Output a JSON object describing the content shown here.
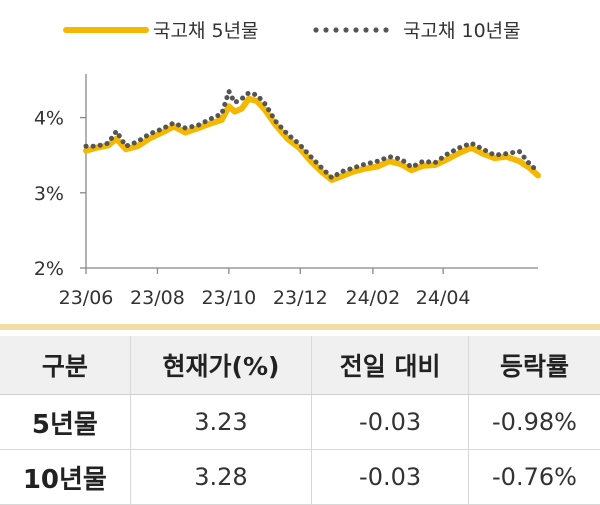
{
  "chart_data": {
    "type": "line",
    "legend": {
      "placement": "top"
    },
    "x_ticks": [
      "23/06",
      "23/08",
      "23/10",
      "23/12",
      "24/02",
      "24/04"
    ],
    "y_ticks": [
      "2%",
      "3%",
      "4%"
    ],
    "ylim": [
      2.0,
      4.5
    ],
    "grid": false,
    "x_range": [
      "2023-06-01",
      "2024-06-21"
    ],
    "series": [
      {
        "name": "국고채 5년물",
        "color": "#f5b800",
        "style": "solid",
        "points": [
          [
            "2023-06-01",
            3.56
          ],
          [
            "2023-06-10",
            3.6
          ],
          [
            "2023-06-20",
            3.63
          ],
          [
            "2023-06-27",
            3.72
          ],
          [
            "2023-07-05",
            3.58
          ],
          [
            "2023-07-15",
            3.62
          ],
          [
            "2023-07-25",
            3.72
          ],
          [
            "2023-08-05",
            3.8
          ],
          [
            "2023-08-15",
            3.88
          ],
          [
            "2023-08-25",
            3.8
          ],
          [
            "2023-09-05",
            3.86
          ],
          [
            "2023-09-15",
            3.92
          ],
          [
            "2023-09-25",
            3.97
          ],
          [
            "2023-10-01",
            4.15
          ],
          [
            "2023-10-06",
            4.08
          ],
          [
            "2023-10-12",
            4.12
          ],
          [
            "2023-10-18",
            4.25
          ],
          [
            "2023-10-25",
            4.22
          ],
          [
            "2023-11-01",
            4.1
          ],
          [
            "2023-11-10",
            3.9
          ],
          [
            "2023-11-20",
            3.72
          ],
          [
            "2023-11-30",
            3.6
          ],
          [
            "2023-12-10",
            3.42
          ],
          [
            "2023-12-20",
            3.27
          ],
          [
            "2023-12-28",
            3.17
          ],
          [
            "2024-01-05",
            3.22
          ],
          [
            "2024-01-15",
            3.28
          ],
          [
            "2024-01-25",
            3.32
          ],
          [
            "2024-02-05",
            3.35
          ],
          [
            "2024-02-15",
            3.42
          ],
          [
            "2024-02-25",
            3.38
          ],
          [
            "2024-03-05",
            3.3
          ],
          [
            "2024-03-15",
            3.36
          ],
          [
            "2024-03-25",
            3.37
          ],
          [
            "2024-04-05",
            3.45
          ],
          [
            "2024-04-15",
            3.53
          ],
          [
            "2024-04-25",
            3.6
          ],
          [
            "2024-05-05",
            3.52
          ],
          [
            "2024-05-15",
            3.46
          ],
          [
            "2024-05-25",
            3.48
          ],
          [
            "2024-06-05",
            3.42
          ],
          [
            "2024-06-14",
            3.33
          ],
          [
            "2024-06-21",
            3.23
          ]
        ]
      },
      {
        "name": "국고채 10년물",
        "color": "#555555",
        "style": "dotted",
        "points": [
          [
            "2023-06-01",
            3.62
          ],
          [
            "2023-06-10",
            3.62
          ],
          [
            "2023-06-20",
            3.66
          ],
          [
            "2023-06-27",
            3.82
          ],
          [
            "2023-07-05",
            3.62
          ],
          [
            "2023-07-15",
            3.68
          ],
          [
            "2023-07-25",
            3.78
          ],
          [
            "2023-08-05",
            3.85
          ],
          [
            "2023-08-15",
            3.93
          ],
          [
            "2023-08-25",
            3.86
          ],
          [
            "2023-09-05",
            3.9
          ],
          [
            "2023-09-15",
            3.98
          ],
          [
            "2023-09-25",
            4.05
          ],
          [
            "2023-10-01",
            4.35
          ],
          [
            "2023-10-06",
            4.2
          ],
          [
            "2023-10-12",
            4.25
          ],
          [
            "2023-10-18",
            4.33
          ],
          [
            "2023-10-25",
            4.3
          ],
          [
            "2023-11-01",
            4.18
          ],
          [
            "2023-11-10",
            3.95
          ],
          [
            "2023-11-20",
            3.78
          ],
          [
            "2023-11-30",
            3.65
          ],
          [
            "2023-12-10",
            3.48
          ],
          [
            "2023-12-20",
            3.32
          ],
          [
            "2023-12-28",
            3.2
          ],
          [
            "2024-01-05",
            3.28
          ],
          [
            "2024-01-15",
            3.33
          ],
          [
            "2024-01-25",
            3.38
          ],
          [
            "2024-02-05",
            3.42
          ],
          [
            "2024-02-15",
            3.48
          ],
          [
            "2024-02-25",
            3.45
          ],
          [
            "2024-03-05",
            3.34
          ],
          [
            "2024-03-15",
            3.42
          ],
          [
            "2024-03-25",
            3.4
          ],
          [
            "2024-04-05",
            3.52
          ],
          [
            "2024-04-15",
            3.6
          ],
          [
            "2024-04-25",
            3.66
          ],
          [
            "2024-05-05",
            3.58
          ],
          [
            "2024-05-15",
            3.5
          ],
          [
            "2024-05-25",
            3.52
          ],
          [
            "2024-06-05",
            3.55
          ],
          [
            "2024-06-14",
            3.38
          ],
          [
            "2024-06-21",
            3.28
          ]
        ]
      }
    ]
  },
  "table": {
    "headers": [
      "구분",
      "현재가(%)",
      "전일 대비",
      "등락률"
    ],
    "rows": [
      {
        "label": "5년물",
        "price": "3.23",
        "change": "-0.03",
        "rate": "-0.98%"
      },
      {
        "label": "10년물",
        "price": "3.28",
        "change": "-0.03",
        "rate": "-0.76%"
      }
    ]
  }
}
